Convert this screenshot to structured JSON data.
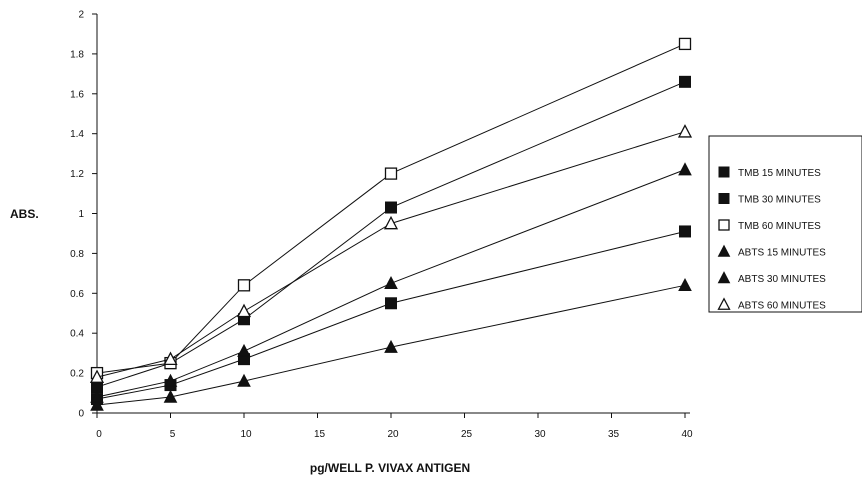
{
  "chart_data": {
    "type": "line",
    "title": "",
    "xlabel": "pg/WELL P. VIVAX ANTIGEN",
    "ylabel": "ABS.",
    "x": [
      0,
      5,
      10,
      20,
      40
    ],
    "xlim": [
      0,
      40
    ],
    "ylim": [
      0,
      2
    ],
    "xticks": [
      "0",
      "5",
      "10",
      "15",
      "20",
      "25",
      "30",
      "35",
      "40"
    ],
    "yticks": [
      "0",
      "0.2",
      "0.4",
      "0.6",
      "0.8",
      "1",
      "1.2",
      "1.4",
      "1.6",
      "1.8",
      "2"
    ],
    "grid": false,
    "legend_position": "right",
    "series": [
      {
        "name": "TMB 15 MINUTES",
        "marker": "square-filled",
        "values": [
          0.07,
          0.14,
          0.27,
          0.55,
          0.91
        ]
      },
      {
        "name": "TMB 30 MINUTES",
        "marker": "square-filled",
        "values": [
          0.13,
          0.25,
          0.47,
          1.03,
          1.66
        ]
      },
      {
        "name": "TMB 60 MINUTES",
        "marker": "square-open",
        "values": [
          0.2,
          0.25,
          0.64,
          1.2,
          1.85
        ]
      },
      {
        "name": "ABTS 15 MINUTES",
        "marker": "triangle-filled",
        "values": [
          0.04,
          0.08,
          0.16,
          0.33,
          0.64
        ]
      },
      {
        "name": "ABTS 30 MINUTES",
        "marker": "triangle-filled",
        "values": [
          0.08,
          0.16,
          0.31,
          0.65,
          1.22
        ]
      },
      {
        "name": "ABTS 60 MINUTES",
        "marker": "triangle-open",
        "values": [
          0.18,
          0.27,
          0.51,
          0.95,
          1.41
        ]
      }
    ]
  }
}
